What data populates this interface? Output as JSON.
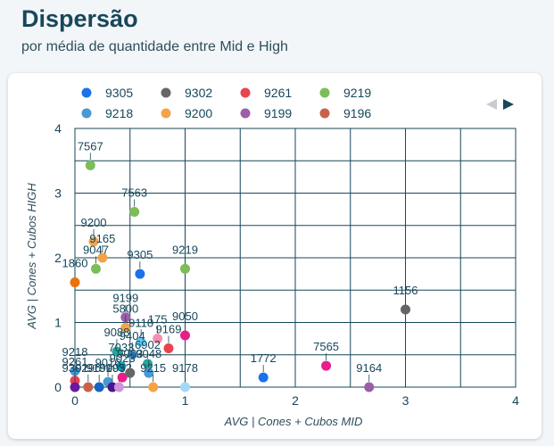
{
  "page": {
    "title": "Dispersão",
    "subtitle": "por média de quantidade entre Mid e High"
  },
  "legend_nav": {
    "prev_icon": "triangle-left-icon",
    "next_icon": "triangle-right-icon"
  },
  "chart_data": {
    "type": "scatter",
    "xlabel": "AVG | Cones + Cubos MID",
    "ylabel": "AVG | Cones + Cubos HIGH",
    "xlim": [
      0,
      4
    ],
    "ylim": [
      0,
      4
    ],
    "xticks": [
      "0",
      "1",
      "2",
      "3",
      "4"
    ],
    "yticks": [
      "0",
      "1",
      "2",
      "3",
      "4"
    ],
    "grid": true,
    "legend_position": "top",
    "legend": [
      {
        "name": "9305",
        "color": "#1a73e8"
      },
      {
        "name": "9302",
        "color": "#666666"
      },
      {
        "name": "9261",
        "color": "#e8434f"
      },
      {
        "name": "9219",
        "color": "#7cbd5a"
      },
      {
        "name": "9218",
        "color": "#4a98d4"
      },
      {
        "name": "9200",
        "color": "#f5a347"
      },
      {
        "name": "9199",
        "color": "#9b5fa8"
      },
      {
        "name": "9196",
        "color": "#c8614a"
      }
    ],
    "points": [
      {
        "label": "7567",
        "x": 0.14,
        "y": 3.43,
        "color": "#7cbd5a"
      },
      {
        "label": "7563",
        "x": 0.54,
        "y": 2.71,
        "color": "#7cbd5a"
      },
      {
        "label": "9200",
        "x": 0.17,
        "y": 2.25,
        "color": "#f5a347"
      },
      {
        "label": "9165",
        "x": 0.25,
        "y": 2.0,
        "color": "#f5a347"
      },
      {
        "label": "9047",
        "x": 0.19,
        "y": 1.83,
        "color": "#7cbd5a"
      },
      {
        "label": "9305",
        "x": 0.59,
        "y": 1.75,
        "color": "#1a73e8"
      },
      {
        "label": "9219",
        "x": 1.0,
        "y": 1.83,
        "color": "#7cbd5a"
      },
      {
        "label": "1860",
        "x": 0.0,
        "y": 1.62,
        "color": "#e8730f"
      },
      {
        "label": "1156",
        "x": 3.0,
        "y": 1.2,
        "color": "#666666"
      },
      {
        "label": "9199",
        "x": 0.46,
        "y": 1.08,
        "color": "#9b5fa8"
      },
      {
        "label": "5800",
        "x": 0.46,
        "y": 0.92,
        "color": "#f5a347"
      },
      {
        "label": "9110",
        "x": 0.6,
        "y": 0.7,
        "color": "#5ec8f0"
      },
      {
        "label": "175",
        "x": 0.75,
        "y": 0.75,
        "color": "#f48fb1"
      },
      {
        "label": "9050",
        "x": 1.0,
        "y": 0.8,
        "color": "#e91e8c"
      },
      {
        "label": "9169",
        "x": 0.85,
        "y": 0.6,
        "color": "#e8434f"
      },
      {
        "label": "9088",
        "x": 0.38,
        "y": 0.55,
        "color": "#26a69a"
      },
      {
        "label": "9404",
        "x": 0.52,
        "y": 0.5,
        "color": "#4a98d4"
      },
      {
        "label": "6902",
        "x": 0.66,
        "y": 0.36,
        "color": "#26a69a"
      },
      {
        "label": "7033",
        "x": 0.42,
        "y": 0.32,
        "color": "#00acc1"
      },
      {
        "label": "9048",
        "x": 0.67,
        "y": 0.22,
        "color": "#4a98d4"
      },
      {
        "label": "9178",
        "x": 1.0,
        "y": 0.0,
        "color": "#a5d8f5"
      },
      {
        "label": "1772",
        "x": 1.71,
        "y": 0.15,
        "color": "#1a73e8"
      },
      {
        "label": "7565",
        "x": 2.28,
        "y": 0.33,
        "color": "#e91e8c"
      },
      {
        "label": "9164",
        "x": 2.67,
        "y": 0.0,
        "color": "#9b5fa8"
      },
      {
        "label": "9218",
        "x": 0.0,
        "y": 0.25,
        "color": "#4a98d4"
      },
      {
        "label": "9261",
        "x": 0.0,
        "y": 0.1,
        "color": "#e8434f"
      },
      {
        "label": "9302",
        "x": 0.0,
        "y": 0.0,
        "color": "#6a1b9a"
      },
      {
        "label": "9196",
        "x": 0.12,
        "y": 0.0,
        "color": "#c8614a"
      },
      {
        "label": "9151",
        "x": 0.22,
        "y": 0.0,
        "color": "#1565c0"
      },
      {
        "label": "9016",
        "x": 0.3,
        "y": 0.08,
        "color": "#4a98d4"
      },
      {
        "label": "9093",
        "x": 0.34,
        "y": 0.0,
        "color": "#4a148c"
      },
      {
        "label": "9052",
        "x": 0.4,
        "y": 0.0,
        "color": "#ce93d8"
      },
      {
        "label": "9023",
        "x": 0.43,
        "y": 0.15,
        "color": "#e91e8c"
      },
      {
        "label": "9063",
        "x": 0.5,
        "y": 0.22,
        "color": "#666666"
      },
      {
        "label": "9215",
        "x": 0.71,
        "y": 0.0,
        "color": "#f5a347"
      }
    ]
  }
}
